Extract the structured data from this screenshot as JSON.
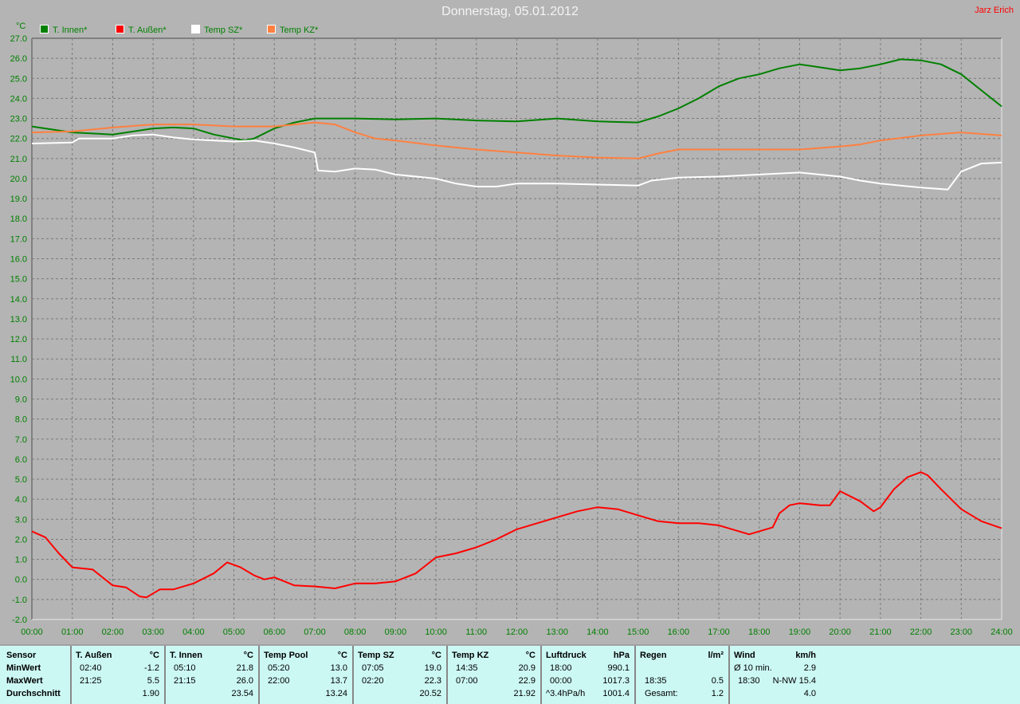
{
  "header": {
    "title": "Donnerstag, 05.01.2012",
    "author": "Jarz Erich"
  },
  "chart_data": {
    "type": "line",
    "ylabel": "°C",
    "ylim": [
      -2,
      27
    ],
    "xlim": [
      "00:00",
      "24:00"
    ],
    "grid": true,
    "legend_position": "top-left",
    "x_ticks": [
      "00:00",
      "01:00",
      "02:00",
      "03:00",
      "04:00",
      "05:00",
      "06:00",
      "07:00",
      "08:00",
      "09:00",
      "10:00",
      "11:00",
      "12:00",
      "13:00",
      "14:00",
      "15:00",
      "16:00",
      "17:00",
      "18:00",
      "19:00",
      "20:00",
      "21:00",
      "22:00",
      "23:00",
      "24:00"
    ],
    "y_ticks": [
      "27.0",
      "26.0",
      "25.0",
      "24.0",
      "23.0",
      "22.0",
      "21.0",
      "20.0",
      "19.0",
      "18.0",
      "17.0",
      "16.0",
      "15.0",
      "14.0",
      "13.0",
      "12.0",
      "11.0",
      "10.0",
      "9.0",
      "8.0",
      "7.0",
      "6.0",
      "5.0",
      "4.0",
      "3.0",
      "2.0",
      "1.0",
      "0.0",
      "-1.0",
      "-2.0"
    ],
    "series": [
      {
        "name": "T. Innen*",
        "color": "#008000",
        "points": [
          [
            "00:00",
            22.6
          ],
          [
            "01:00",
            22.3
          ],
          [
            "02:00",
            22.2
          ],
          [
            "03:00",
            22.5
          ],
          [
            "03:30",
            22.55
          ],
          [
            "04:00",
            22.5
          ],
          [
            "04:30",
            22.2
          ],
          [
            "05:00",
            22.0
          ],
          [
            "05:15",
            21.9
          ],
          [
            "05:30",
            22.0
          ],
          [
            "06:00",
            22.5
          ],
          [
            "06:30",
            22.8
          ],
          [
            "07:00",
            23.0
          ],
          [
            "08:00",
            23.0
          ],
          [
            "09:00",
            22.95
          ],
          [
            "10:00",
            23.0
          ],
          [
            "11:00",
            22.9
          ],
          [
            "12:00",
            22.85
          ],
          [
            "13:00",
            23.0
          ],
          [
            "14:00",
            22.85
          ],
          [
            "15:00",
            22.8
          ],
          [
            "15:30",
            23.1
          ],
          [
            "16:00",
            23.5
          ],
          [
            "16:30",
            24.0
          ],
          [
            "17:00",
            24.6
          ],
          [
            "17:30",
            25.0
          ],
          [
            "18:00",
            25.2
          ],
          [
            "18:30",
            25.5
          ],
          [
            "19:00",
            25.7
          ],
          [
            "19:30",
            25.55
          ],
          [
            "20:00",
            25.4
          ],
          [
            "20:30",
            25.5
          ],
          [
            "21:00",
            25.7
          ],
          [
            "21:30",
            25.95
          ],
          [
            "22:00",
            25.9
          ],
          [
            "22:30",
            25.7
          ],
          [
            "23:00",
            25.2
          ],
          [
            "23:30",
            24.4
          ],
          [
            "24:00",
            23.6
          ]
        ]
      },
      {
        "name": "T. Außen*",
        "color": "#ff0000",
        "points": [
          [
            "00:00",
            2.4
          ],
          [
            "00:20",
            2.1
          ],
          [
            "00:40",
            1.3
          ],
          [
            "01:00",
            0.6
          ],
          [
            "01:30",
            0.5
          ],
          [
            "02:00",
            -0.3
          ],
          [
            "02:20",
            -0.4
          ],
          [
            "02:40",
            -0.85
          ],
          [
            "02:50",
            -0.9
          ],
          [
            "03:10",
            -0.5
          ],
          [
            "03:30",
            -0.5
          ],
          [
            "04:00",
            -0.2
          ],
          [
            "04:30",
            0.3
          ],
          [
            "04:50",
            0.85
          ],
          [
            "05:10",
            0.6
          ],
          [
            "05:30",
            0.2
          ],
          [
            "05:45",
            0.0
          ],
          [
            "06:00",
            0.1
          ],
          [
            "06:30",
            -0.3
          ],
          [
            "07:00",
            -0.35
          ],
          [
            "07:30",
            -0.45
          ],
          [
            "08:00",
            -0.2
          ],
          [
            "08:30",
            -0.2
          ],
          [
            "09:00",
            -0.1
          ],
          [
            "09:30",
            0.3
          ],
          [
            "10:00",
            1.1
          ],
          [
            "10:30",
            1.3
          ],
          [
            "11:00",
            1.6
          ],
          [
            "11:30",
            2.0
          ],
          [
            "12:00",
            2.5
          ],
          [
            "12:30",
            2.8
          ],
          [
            "13:00",
            3.1
          ],
          [
            "13:30",
            3.4
          ],
          [
            "14:00",
            3.6
          ],
          [
            "14:30",
            3.5
          ],
          [
            "15:00",
            3.2
          ],
          [
            "15:30",
            2.9
          ],
          [
            "16:00",
            2.8
          ],
          [
            "16:30",
            2.8
          ],
          [
            "17:00",
            2.7
          ],
          [
            "17:30",
            2.4
          ],
          [
            "17:45",
            2.25
          ],
          [
            "18:00",
            2.4
          ],
          [
            "18:20",
            2.6
          ],
          [
            "18:30",
            3.3
          ],
          [
            "18:45",
            3.7
          ],
          [
            "19:00",
            3.8
          ],
          [
            "19:30",
            3.7
          ],
          [
            "19:45",
            3.7
          ],
          [
            "20:00",
            4.4
          ],
          [
            "20:30",
            3.9
          ],
          [
            "20:50",
            3.4
          ],
          [
            "21:00",
            3.6
          ],
          [
            "21:20",
            4.5
          ],
          [
            "21:40",
            5.1
          ],
          [
            "22:00",
            5.35
          ],
          [
            "22:10",
            5.2
          ],
          [
            "22:30",
            4.5
          ],
          [
            "23:00",
            3.5
          ],
          [
            "23:30",
            2.9
          ],
          [
            "24:00",
            2.55
          ]
        ]
      },
      {
        "name": "Temp SZ*",
        "color": "#ffffff",
        "points": [
          [
            "00:00",
            21.75
          ],
          [
            "01:00",
            21.8
          ],
          [
            "01:10",
            22.0
          ],
          [
            "02:00",
            22.0
          ],
          [
            "02:30",
            22.15
          ],
          [
            "03:00",
            22.2
          ],
          [
            "03:30",
            22.05
          ],
          [
            "04:00",
            21.95
          ],
          [
            "05:00",
            21.85
          ],
          [
            "05:30",
            21.9
          ],
          [
            "06:00",
            21.75
          ],
          [
            "06:30",
            21.55
          ],
          [
            "07:00",
            21.3
          ],
          [
            "07:05",
            20.4
          ],
          [
            "07:30",
            20.35
          ],
          [
            "08:00",
            20.5
          ],
          [
            "08:30",
            20.45
          ],
          [
            "09:00",
            20.2
          ],
          [
            "10:00",
            20.0
          ],
          [
            "10:30",
            19.75
          ],
          [
            "11:00",
            19.6
          ],
          [
            "11:30",
            19.6
          ],
          [
            "12:00",
            19.75
          ],
          [
            "13:00",
            19.75
          ],
          [
            "14:00",
            19.7
          ],
          [
            "15:00",
            19.65
          ],
          [
            "15:20",
            19.9
          ],
          [
            "16:00",
            20.05
          ],
          [
            "17:00",
            20.1
          ],
          [
            "18:00",
            20.2
          ],
          [
            "19:00",
            20.3
          ],
          [
            "20:00",
            20.1
          ],
          [
            "20:30",
            19.9
          ],
          [
            "21:00",
            19.75
          ],
          [
            "22:00",
            19.55
          ],
          [
            "22:40",
            19.45
          ],
          [
            "23:00",
            20.35
          ],
          [
            "23:30",
            20.75
          ],
          [
            "24:00",
            20.8
          ]
        ]
      },
      {
        "name": "Temp KZ*",
        "color": "#ff8040",
        "points": [
          [
            "00:00",
            22.3
          ],
          [
            "01:00",
            22.35
          ],
          [
            "02:00",
            22.55
          ],
          [
            "03:00",
            22.7
          ],
          [
            "04:00",
            22.7
          ],
          [
            "05:00",
            22.6
          ],
          [
            "06:00",
            22.6
          ],
          [
            "07:00",
            22.8
          ],
          [
            "07:30",
            22.7
          ],
          [
            "08:00",
            22.3
          ],
          [
            "08:30",
            22.0
          ],
          [
            "09:00",
            21.9
          ],
          [
            "10:00",
            21.65
          ],
          [
            "11:00",
            21.45
          ],
          [
            "12:00",
            21.3
          ],
          [
            "13:00",
            21.15
          ],
          [
            "14:00",
            21.05
          ],
          [
            "15:00",
            21.0
          ],
          [
            "15:30",
            21.25
          ],
          [
            "16:00",
            21.45
          ],
          [
            "17:00",
            21.45
          ],
          [
            "18:00",
            21.45
          ],
          [
            "19:00",
            21.45
          ],
          [
            "20:00",
            21.6
          ],
          [
            "20:30",
            21.7
          ],
          [
            "21:00",
            21.9
          ],
          [
            "22:00",
            22.15
          ],
          [
            "23:00",
            22.3
          ],
          [
            "24:00",
            22.15
          ]
        ]
      }
    ]
  },
  "table": {
    "row_labels": [
      "Sensor",
      "MinWert",
      "MaxWert",
      "Durchschnitt"
    ],
    "columns": [
      {
        "name": "T. Außen",
        "unit": "°C",
        "rows": [
          [
            "02:40",
            "-1.2"
          ],
          [
            "21:25",
            "5.5"
          ],
          [
            "",
            "1.90"
          ]
        ]
      },
      {
        "name": "T. Innen",
        "unit": "°C",
        "rows": [
          [
            "05:10",
            "21.8"
          ],
          [
            "21:15",
            "26.0"
          ],
          [
            "",
            "23.54"
          ]
        ]
      },
      {
        "name": "Temp Pool",
        "unit": "°C",
        "rows": [
          [
            "05:20",
            "13.0"
          ],
          [
            "22:00",
            "13.7"
          ],
          [
            "",
            "13.24"
          ]
        ]
      },
      {
        "name": "Temp SZ",
        "unit": "°C",
        "rows": [
          [
            "07:05",
            "19.0"
          ],
          [
            "02:20",
            "22.3"
          ],
          [
            "",
            "20.52"
          ]
        ]
      },
      {
        "name": "Temp KZ",
        "unit": "°C",
        "rows": [
          [
            "14:35",
            "20.9"
          ],
          [
            "07:00",
            "22.9"
          ],
          [
            "",
            "21.92"
          ]
        ]
      },
      {
        "name": "Luftdruck",
        "unit": "hPa",
        "rows": [
          [
            "18:00",
            "990.1"
          ],
          [
            "00:00",
            "1017.3"
          ],
          [
            "^3.4hPa/h",
            "1001.4"
          ]
        ]
      },
      {
        "name": "Regen",
        "unit": "l/m²",
        "rows": [
          [
            "",
            ""
          ],
          [
            "18:35",
            "0.5"
          ],
          [
            "Gesamt:",
            "1.2"
          ]
        ]
      },
      {
        "name": "Wind",
        "unit": "km/h",
        "rows": [
          [
            "Ø 10 min.",
            "2.9"
          ],
          [
            "18:30",
            "N-NW 15.4"
          ],
          [
            "",
            "4.0"
          ]
        ]
      }
    ]
  }
}
